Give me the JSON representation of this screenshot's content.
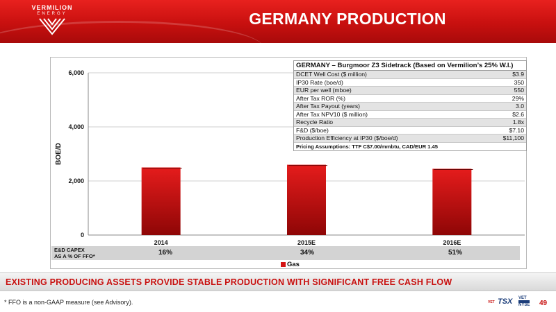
{
  "header": {
    "title": "GERMANY PRODUCTION",
    "logo_name": "VERMILION",
    "logo_tagline": "ENERGY"
  },
  "chart_data": {
    "type": "bar",
    "categories": [
      "2014",
      "2015E",
      "2016E"
    ],
    "series": [
      {
        "name": "Gas",
        "values": [
          2500,
          2600,
          2450
        ],
        "color": "#d41414"
      }
    ],
    "ylabel": "BOE/D",
    "ylim": [
      0,
      6000
    ],
    "yticks": [
      "0",
      "2,000",
      "4,000",
      "6,000"
    ],
    "yticks_values": [
      0,
      2000,
      4000,
      6000
    ],
    "grid": true,
    "legend_placement": "bottom"
  },
  "capex": {
    "label_line1": "E&D CAPEX",
    "label_line2": "AS A % OF FFO*",
    "values": [
      "16%",
      "34%",
      "51%"
    ]
  },
  "metrics": {
    "title": "GERMANY – Burgmoor Z3 Sidetrack (Based on Vermilion’s 25% W.I.)",
    "rows": [
      {
        "label": "DCET Well Cost ($ million)",
        "value": "$3.9"
      },
      {
        "label": "IP30 Rate (boe/d)",
        "value": "350"
      },
      {
        "label": "EUR per well (mboe)",
        "value": "550"
      },
      {
        "label": "After Tax ROR (%)",
        "value": "29%"
      },
      {
        "label": "After Tax Payout (years)",
        "value": "3.0"
      },
      {
        "label": "After Tax NPV10 ($ million)",
        "value": "$2.6"
      },
      {
        "label": "Recycle Ratio",
        "value": "1.8x"
      },
      {
        "label": "F&D ($/boe)",
        "value": "$7.10"
      },
      {
        "label": "Production Efficiency at IP30 ($/boe/d)",
        "value": "$11,100"
      }
    ],
    "footer": "Pricing Assumptions: TTF C$7.00/mmbtu, CAD/EUR 1.45"
  },
  "legend": {
    "label": "Gas"
  },
  "banner": {
    "text": "EXISTING PRODUCING ASSETS PROVIDE STABLE PRODUCTION WITH SIGNIFICANT FREE CASH FLOW"
  },
  "footer": {
    "footnote": "*  FFO is a non-GAAP measure (see Advisory).",
    "exchange_tsx": "TSX",
    "exchange_nyse": "NYSE",
    "exchange_ticker_top": "VET",
    "exchange_ticker_left": "VET",
    "page_number": "49"
  },
  "colors": {
    "brand_red": "#c8100f",
    "bar_red": "#d41414",
    "navy": "#1b3d7a"
  }
}
